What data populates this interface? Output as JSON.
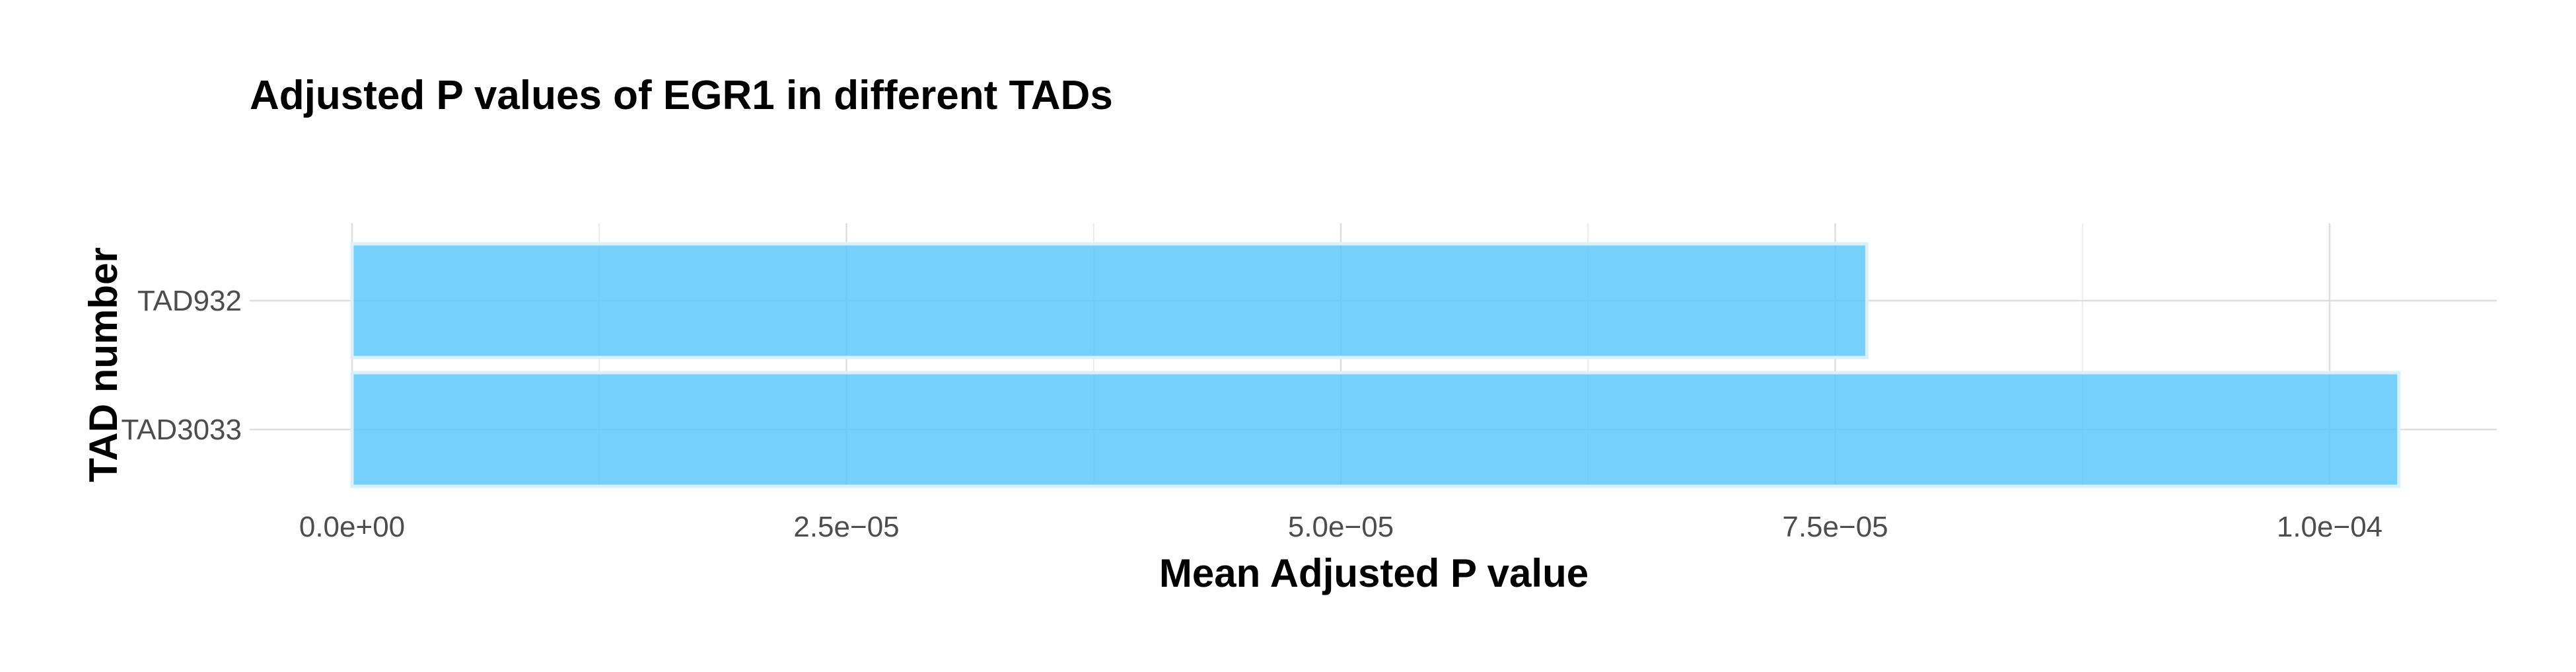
{
  "chart_data": {
    "type": "bar",
    "orientation": "horizontal",
    "title": "Adjusted P values of EGR1 in different TADs",
    "xlabel": "Mean Adjusted P value",
    "ylabel": "TAD number",
    "categories": [
      "TAD932",
      "TAD3033"
    ],
    "values": [
      7.66e-05,
      0.0001035
    ],
    "xlim": [
      0,
      0.000108
    ],
    "xticks": [
      0,
      2.5e-05,
      5e-05,
      7.5e-05,
      0.0001
    ],
    "xtick_labels": [
      "0.0e+00",
      "2.5e−05",
      "5.0e−05",
      "7.5e−05",
      "1.0e−04"
    ],
    "grid": true,
    "legend": "none",
    "colors": {
      "bar_fill": "#5ec8fb",
      "bar_stroke": "#d9f1fe"
    }
  }
}
